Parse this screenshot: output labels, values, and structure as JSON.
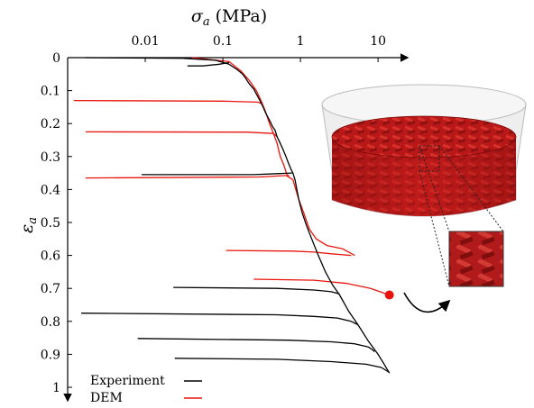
{
  "chart_data": {
    "type": "line",
    "title": "",
    "xlabel": "σ_a (MPa)",
    "ylabel": "ε_a",
    "xscale": "log",
    "xaxis_position": "top",
    "yaxis_inverted": true,
    "xlim": [
      0.001,
      20
    ],
    "ylim": [
      0,
      1
    ],
    "xticks": [
      0.01,
      0.1,
      1,
      10
    ],
    "xtick_labels": [
      "0.01",
      "0.1",
      "1",
      "10"
    ],
    "yticks": [
      0,
      0.1,
      0.2,
      0.3,
      0.4,
      0.5,
      0.6,
      0.7,
      0.8,
      0.9,
      1
    ],
    "ytick_labels": [
      "0",
      "0.1",
      "0.2",
      "0.3",
      "0.4",
      "0.5",
      "0.6",
      "0.7",
      "0.8",
      "0.9",
      "1"
    ],
    "grid": false,
    "legend_position": "bottom-left",
    "series": [
      {
        "name": "Experiment",
        "color": "#000000",
        "segments": [
          [
            [
              0.0017,
              0.0
            ],
            [
              0.03,
              0.002
            ],
            [
              0.08,
              0.008
            ],
            [
              0.12,
              0.02
            ],
            [
              0.15,
              0.035
            ],
            [
              0.18,
              0.05
            ],
            [
              0.2,
              0.065
            ],
            [
              0.22,
              0.08
            ],
            [
              0.25,
              0.095
            ],
            [
              0.27,
              0.11
            ],
            [
              0.3,
              0.13
            ],
            [
              0.33,
              0.15
            ],
            [
              0.36,
              0.17
            ],
            [
              0.4,
              0.19
            ],
            [
              0.44,
              0.21
            ],
            [
              0.47,
              0.22
            ],
            [
              0.5,
              0.24
            ],
            [
              0.55,
              0.26
            ],
            [
              0.6,
              0.28
            ],
            [
              0.65,
              0.3
            ],
            [
              0.7,
              0.32
            ],
            [
              0.76,
              0.34
            ],
            [
              0.8,
              0.35
            ],
            [
              0.85,
              0.37
            ],
            [
              0.9,
              0.4
            ],
            [
              0.95,
              0.43
            ],
            [
              1.05,
              0.47
            ],
            [
              1.2,
              0.51
            ],
            [
              1.4,
              0.55
            ],
            [
              1.7,
              0.6
            ],
            [
              2.1,
              0.65
            ],
            [
              2.6,
              0.69
            ],
            [
              3.2,
              0.72
            ],
            [
              4.2,
              0.77
            ],
            [
              5.5,
              0.81
            ],
            [
              7.5,
              0.86
            ],
            [
              10,
              0.9
            ],
            [
              12,
              0.93
            ],
            [
              14,
              0.957
            ]
          ],
          [
            [
              0.035,
              0.025
            ],
            [
              0.055,
              0.025
            ],
            [
              0.09,
              0.02
            ],
            [
              0.12,
              0.015
            ]
          ],
          [
            [
              0.009,
              0.355
            ],
            [
              0.25,
              0.355
            ],
            [
              0.5,
              0.352
            ],
            [
              0.78,
              0.35
            ]
          ],
          [
            [
              0.023,
              0.697
            ],
            [
              0.5,
              0.7
            ],
            [
              1.5,
              0.705
            ],
            [
              2.5,
              0.71
            ],
            [
              3.2,
              0.717
            ]
          ],
          [
            [
              0.0015,
              0.775
            ],
            [
              0.5,
              0.78
            ],
            [
              1.5,
              0.785
            ],
            [
              3,
              0.79
            ],
            [
              4.5,
              0.8
            ],
            [
              5.5,
              0.81
            ]
          ],
          [
            [
              0.008,
              0.852
            ],
            [
              0.7,
              0.857
            ],
            [
              2.5,
              0.862
            ],
            [
              5,
              0.868
            ],
            [
              7.5,
              0.878
            ],
            [
              8.5,
              0.886
            ],
            [
              9,
              0.892
            ]
          ],
          [
            [
              0.024,
              0.912
            ],
            [
              0.5,
              0.915
            ],
            [
              2.5,
              0.922
            ],
            [
              7,
              0.93
            ],
            [
              11,
              0.94
            ],
            [
              14,
              0.955
            ]
          ]
        ]
      },
      {
        "name": "DEM",
        "color": "#e8140c",
        "segments": [
          [
            [
              0.04,
              0.0
            ],
            [
              0.12,
              0.012
            ],
            [
              0.17,
              0.04
            ],
            [
              0.22,
              0.07
            ],
            [
              0.27,
              0.1
            ],
            [
              0.31,
              0.13
            ],
            [
              0.35,
              0.16
            ],
            [
              0.4,
              0.2
            ],
            [
              0.45,
              0.23
            ],
            [
              0.5,
              0.26
            ],
            [
              0.55,
              0.3
            ],
            [
              0.62,
              0.33
            ],
            [
              0.68,
              0.36
            ],
            [
              0.8,
              0.37
            ],
            [
              0.95,
              0.43
            ],
            [
              1.1,
              0.47
            ],
            [
              1.3,
              0.52
            ],
            [
              1.6,
              0.55
            ],
            [
              2.2,
              0.57
            ],
            [
              3.5,
              0.58
            ],
            [
              5,
              0.6
            ]
          ],
          [
            [
              0.0012,
              0.13
            ],
            [
              0.1,
              0.132
            ],
            [
              0.28,
              0.135
            ],
            [
              0.32,
              0.14
            ]
          ],
          [
            [
              0.0017,
              0.225
            ],
            [
              0.2,
              0.226
            ],
            [
              0.45,
              0.23
            ],
            [
              0.5,
              0.24
            ]
          ],
          [
            [
              0.0017,
              0.365
            ],
            [
              0.3,
              0.362
            ],
            [
              0.62,
              0.358
            ],
            [
              0.72,
              0.358
            ]
          ],
          [
            [
              0.11,
              0.585
            ],
            [
              0.8,
              0.587
            ],
            [
              1.5,
              0.59
            ],
            [
              2.5,
              0.595
            ],
            [
              4.5,
              0.6
            ]
          ],
          [
            [
              0.25,
              0.672
            ],
            [
              1.5,
              0.675
            ],
            [
              4,
              0.685
            ],
            [
              8,
              0.7
            ],
            [
              14,
              0.72
            ]
          ]
        ]
      }
    ],
    "annotations": {
      "marker": {
        "x": 14,
        "y": 0.72,
        "color": "#e8140c"
      }
    }
  }
}
